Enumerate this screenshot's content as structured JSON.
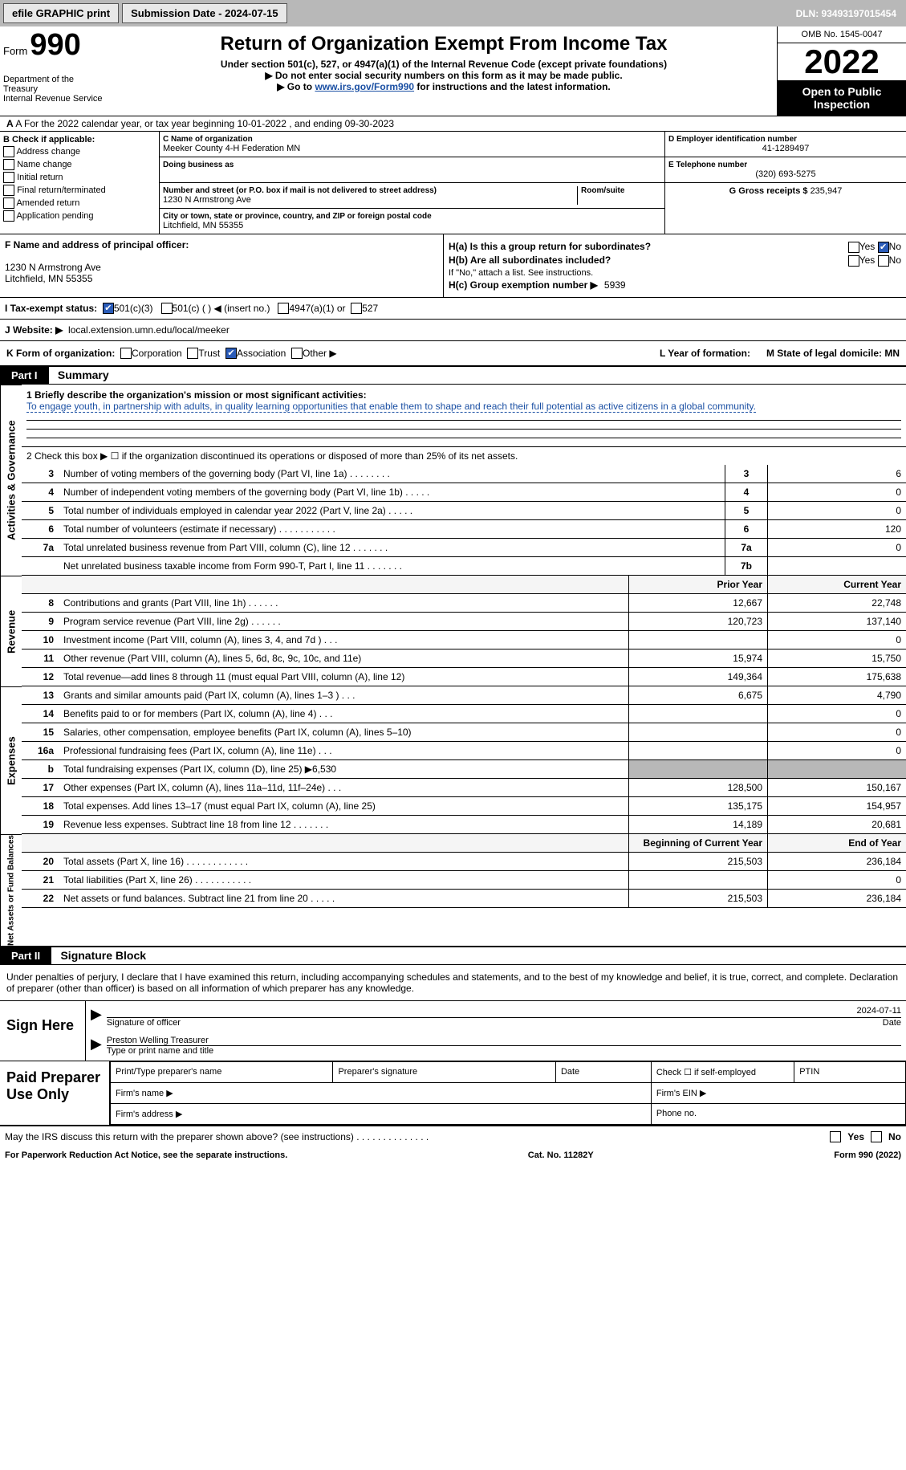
{
  "topbar": {
    "efile": "efile GRAPHIC print",
    "subdate_label": "Submission Date - 2024-07-15",
    "dln_label": "DLN: 93493197015454"
  },
  "header": {
    "form_word": "Form",
    "form_num": "990",
    "dept": "Department of the Treasury",
    "irs": "Internal Revenue Service",
    "title": "Return of Organization Exempt From Income Tax",
    "sub": "Under section 501(c), 527, or 4947(a)(1) of the Internal Revenue Code (except private foundations)",
    "note1": "▶ Do not enter social security numbers on this form as it may be made public.",
    "note2_pre": "▶ Go to ",
    "note2_link": "www.irs.gov/Form990",
    "note2_post": " for instructions and the latest information.",
    "omb": "OMB No. 1545-0047",
    "year": "2022",
    "otp": "Open to Public Inspection"
  },
  "lineA": "A For the 2022 calendar year, or tax year beginning 10-01-2022    , and ending 09-30-2023",
  "boxB": {
    "title": "B Check if applicable:",
    "opt1": "Address change",
    "opt2": "Name change",
    "opt3": "Initial return",
    "opt4": "Final return/terminated",
    "opt5": "Amended return",
    "opt6": "Application pending"
  },
  "boxC": {
    "lbl_name": "C Name of organization",
    "name": "Meeker County 4-H Federation MN",
    "lbl_dba": "Doing business as",
    "lbl_addr": "Number and street (or P.O. box if mail is not delivered to street address)",
    "lbl_room": "Room/suite",
    "addr": "1230 N Armstrong Ave",
    "lbl_city": "City or town, state or province, country, and ZIP or foreign postal code",
    "city": "Litchfield, MN  55355"
  },
  "boxDE": {
    "lbl_d": "D Employer identification number",
    "ein": "41-1289497",
    "lbl_e": "E Telephone number",
    "phone": "(320) 693-5275",
    "lbl_g": "G Gross receipts $",
    "gross": "235,947"
  },
  "boxF": {
    "lbl": "F Name and address of principal officer:",
    "addr1": "1230 N Armstrong Ave",
    "addr2": "Litchfield, MN  55355"
  },
  "boxH": {
    "ha_lbl": "H(a)  Is this a group return for subordinates?",
    "hb_lbl": "H(b)  Are all subordinates included?",
    "hb_note": "If \"No,\" attach a list. See instructions.",
    "hc_lbl": "H(c)  Group exemption number ▶",
    "hc_val": "5939",
    "yes": "Yes",
    "no": "No"
  },
  "rowI": {
    "lbl": "I  Tax-exempt status:",
    "o1": "501(c)(3)",
    "o2": "501(c) (  ) ◀ (insert no.)",
    "o3": "4947(a)(1) or",
    "o4": "527"
  },
  "rowJ": {
    "lbl": "J  Website: ▶",
    "val": "local.extension.umn.edu/local/meeker"
  },
  "rowK": {
    "lbl": "K Form of organization:",
    "o1": "Corporation",
    "o2": "Trust",
    "o3": "Association",
    "o4": "Other ▶",
    "l_lbl": "L Year of formation:",
    "m_lbl": "M State of legal domicile: MN"
  },
  "parts": {
    "p1": "Part I",
    "p1_title": "Summary",
    "p2": "Part II",
    "p2_title": "Signature Block"
  },
  "side": {
    "ag": "Activities & Governance",
    "rev": "Revenue",
    "exp": "Expenses",
    "naf": "Net Assets or Fund Balances"
  },
  "mission": {
    "lbl": "1  Briefly describe the organization's mission or most significant activities:",
    "text": "To engage youth, in partnership with adults, in quality learning opportunities that enable them to shape and reach their full potential as active citizens in a global community."
  },
  "line2": "2    Check this box ▶ ☐  if the organization discontinued its operations or disposed of more than 25% of its net assets.",
  "rows_ag": [
    {
      "n": "3",
      "d": "Number of voting members of the governing body (Part VI, line 1a)  .   .   .   .   .   .   .   .",
      "b": "3",
      "v": "6"
    },
    {
      "n": "4",
      "d": "Number of independent voting members of the governing body (Part VI, line 1b)  .   .   .   .   .",
      "b": "4",
      "v": "0"
    },
    {
      "n": "5",
      "d": "Total number of individuals employed in calendar year 2022 (Part V, line 2a)   .   .   .   .   .",
      "b": "5",
      "v": "0"
    },
    {
      "n": "6",
      "d": "Total number of volunteers (estimate if necessary)    .   .   .   .   .   .   .   .   .   .   .",
      "b": "6",
      "v": "120"
    },
    {
      "n": "7a",
      "d": "Total unrelated business revenue from Part VIII, column (C), line 12   .   .   .   .   .   .   .",
      "b": "7a",
      "v": "0"
    },
    {
      "n": "",
      "d": "Net unrelated business taxable income from Form 990-T, Part I, line 11  .   .   .   .   .   .   .",
      "b": "7b",
      "v": ""
    }
  ],
  "col_heads": {
    "py": "Prior Year",
    "cy": "Current Year"
  },
  "rows_rev": [
    {
      "n": "8",
      "d": "Contributions and grants (Part VIII, line 1h)   .   .   .   .   .   .",
      "py": "12,667",
      "cy": "22,748"
    },
    {
      "n": "9",
      "d": "Program service revenue (Part VIII, line 2g)   .   .   .   .   .   .",
      "py": "120,723",
      "cy": "137,140"
    },
    {
      "n": "10",
      "d": "Investment income (Part VIII, column (A), lines 3, 4, and 7d )   .   .   .",
      "py": "",
      "cy": "0"
    },
    {
      "n": "11",
      "d": "Other revenue (Part VIII, column (A), lines 5, 6d, 8c, 9c, 10c, and 11e)",
      "py": "15,974",
      "cy": "15,750"
    },
    {
      "n": "12",
      "d": "Total revenue—add lines 8 through 11 (must equal Part VIII, column (A), line 12)",
      "py": "149,364",
      "cy": "175,638"
    }
  ],
  "rows_exp": [
    {
      "n": "13",
      "d": "Grants and similar amounts paid (Part IX, column (A), lines 1–3 )   .   .   .",
      "py": "6,675",
      "cy": "4,790"
    },
    {
      "n": "14",
      "d": "Benefits paid to or for members (Part IX, column (A), line 4)   .   .   .",
      "py": "",
      "cy": "0"
    },
    {
      "n": "15",
      "d": "Salaries, other compensation, employee benefits (Part IX, column (A), lines 5–10)",
      "py": "",
      "cy": "0"
    },
    {
      "n": "16a",
      "d": "Professional fundraising fees (Part IX, column (A), line 11e)   .   .   .",
      "py": "",
      "cy": "0"
    },
    {
      "n": "b",
      "d": "Total fundraising expenses (Part IX, column (D), line 25) ▶6,530",
      "py": "shaded",
      "cy": "shaded"
    },
    {
      "n": "17",
      "d": "Other expenses (Part IX, column (A), lines 11a–11d, 11f–24e)   .   .   .",
      "py": "128,500",
      "cy": "150,167"
    },
    {
      "n": "18",
      "d": "Total expenses. Add lines 13–17 (must equal Part IX, column (A), line 25)",
      "py": "135,175",
      "cy": "154,957"
    },
    {
      "n": "19",
      "d": "Revenue less expenses. Subtract line 18 from line 12 .   .    .   .    .   .    .",
      "py": "14,189",
      "cy": "20,681"
    }
  ],
  "col_heads2": {
    "by": "Beginning of Current Year",
    "ey": "End of Year"
  },
  "rows_naf": [
    {
      "n": "20",
      "d": "Total assets (Part X, line 16) .   .   .   .   .   .   .   .   .   .   .   .",
      "py": "215,503",
      "cy": "236,184"
    },
    {
      "n": "21",
      "d": "Total liabilities (Part X, line 26) .   .   .   .   .   .   .   .   .   .   .",
      "py": "",
      "cy": "0"
    },
    {
      "n": "22",
      "d": "Net assets or fund balances. Subtract line 21 from line 20  .   .   .   .   .",
      "py": "215,503",
      "cy": "236,184"
    }
  ],
  "sig_decl": "Under penalties of perjury, I declare that I have examined this return, including accompanying schedules and statements, and to the best of my knowledge and belief, it is true, correct, and complete. Declaration of preparer (other than officer) is based on all information of which preparer has any knowledge.",
  "sign": {
    "here": "Sign Here",
    "sig_lbl": "Signature of officer",
    "date": "2024-07-11",
    "date_lbl": "Date",
    "name": "Preston Welling Treasurer",
    "name_lbl": "Type or print name and title"
  },
  "paid": {
    "title": "Paid Preparer Use Only",
    "c1": "Print/Type preparer's name",
    "c2": "Preparer's signature",
    "c3": "Date",
    "c4": "Check ☐ if self-employed",
    "c5": "PTIN",
    "r2a": "Firm's name    ▶",
    "r2b": "Firm's EIN ▶",
    "r3a": "Firm's address ▶",
    "r3b": "Phone no."
  },
  "footer": {
    "discuss": "May the IRS discuss this return with the preparer shown above? (see instructions)   .   .   .   .   .   .   .   .   .   .   .   .   .   .",
    "yes": "Yes",
    "no": "No",
    "pra": "For Paperwork Reduction Act Notice, see the separate instructions.",
    "cat": "Cat. No. 11282Y",
    "form": "Form 990 (2022)"
  }
}
